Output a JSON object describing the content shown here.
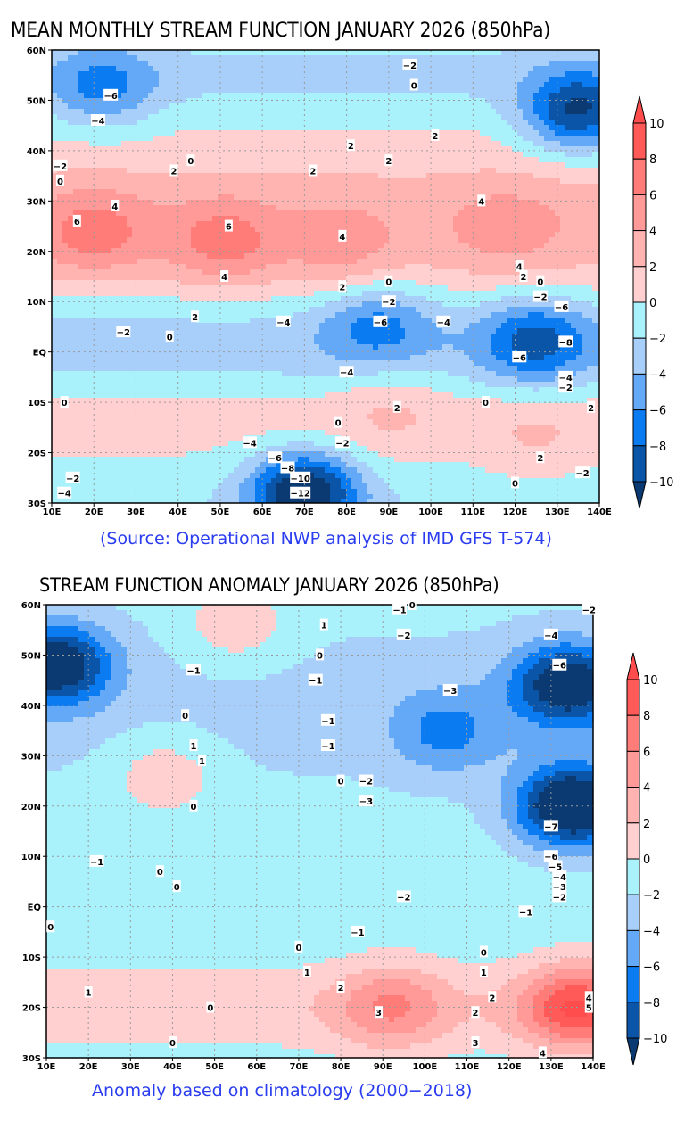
{
  "colors": {
    "bins": [
      "#0b3a73",
      "#0a55a8",
      "#0a7bf0",
      "#63a9f8",
      "#a8cff9",
      "#a9f1fb",
      "#ffd0cf",
      "#ffb4b2",
      "#ff9a98",
      "#ff7c79",
      "#ff5a57",
      "#ff4d4d"
    ],
    "caption": "#2a3cf0"
  },
  "chart_data": [
    {
      "type": "heatmap",
      "subtype": "filled-contour-map",
      "title": "MEAN MONTHLY STREAM FUNCTION JANUARY 2026 (850hPa)",
      "caption": "(Source: Operational NWP analysis of IMD GFS T-574)",
      "x_ticks": [
        "10E",
        "20E",
        "30E",
        "40E",
        "50E",
        "60E",
        "70E",
        "80E",
        "90E",
        "100E",
        "110E",
        "120E",
        "130E",
        "140E"
      ],
      "y_ticks": [
        "60N",
        "50N",
        "40N",
        "30N",
        "20N",
        "10N",
        "EQ",
        "10S",
        "20S",
        "30S"
      ],
      "xlim": [
        10,
        140
      ],
      "ylim": [
        -30,
        60
      ],
      "colorbar": {
        "levels": [
          "10",
          "8",
          "6",
          "4",
          "2",
          "0",
          "-2",
          "-4",
          "-6",
          "-8",
          "-10"
        ],
        "extend": "both"
      },
      "regions": [
        {
          "name": "north-africa-high",
          "lon": 20,
          "lat": 24,
          "value": 6
        },
        {
          "name": "arabia-high",
          "lon": 51,
          "lat": 22,
          "value": 6
        },
        {
          "name": "india-high",
          "lon": 79,
          "lat": 21,
          "value": 4
        },
        {
          "name": "china-high",
          "lon": 118,
          "lat": 25,
          "value": 4
        },
        {
          "name": "europe-low",
          "lon": 22,
          "lat": 53,
          "value": -6
        },
        {
          "name": "japan-low",
          "lon": 135,
          "lat": 48,
          "value": -10
        },
        {
          "name": "maritime-low",
          "lon": 125,
          "lat": 2,
          "value": -8
        },
        {
          "name": "bay-of-bengal-low",
          "lon": 87,
          "lat": 5,
          "value": -6
        },
        {
          "name": "south-indian-ocean-low",
          "lon": 70,
          "lat": -28,
          "value": -12
        },
        {
          "name": "south-indian-ocean-ridge",
          "lon": 90,
          "lat": -12,
          "value": 2
        },
        {
          "name": "australia-ridge",
          "lon": 125,
          "lat": -17,
          "value": 2
        },
        {
          "name": "southern-africa-ridge",
          "lon": 22,
          "lat": -15,
          "value": 0
        }
      ],
      "contour_labels": [
        {
          "text": "-2",
          "lon": 95,
          "lat": 57
        },
        {
          "text": "0",
          "lon": 96,
          "lat": 53
        },
        {
          "text": "-6",
          "lon": 24,
          "lat": 51
        },
        {
          "text": "-4",
          "lon": 21,
          "lat": 46
        },
        {
          "text": "-2",
          "lon": 12,
          "lat": 37
        },
        {
          "text": "0",
          "lon": 12,
          "lat": 34
        },
        {
          "text": "0",
          "lon": 43,
          "lat": 38
        },
        {
          "text": "2",
          "lon": 72,
          "lat": 36
        },
        {
          "text": "2",
          "lon": 39,
          "lat": 36
        },
        {
          "text": "2",
          "lon": 81,
          "lat": 41
        },
        {
          "text": "2",
          "lon": 90,
          "lat": 38
        },
        {
          "text": "2",
          "lon": 101,
          "lat": 43
        },
        {
          "text": "4",
          "lon": 25,
          "lat": 29
        },
        {
          "text": "6",
          "lon": 16,
          "lat": 26
        },
        {
          "text": "6",
          "lon": 52,
          "lat": 25
        },
        {
          "text": "4",
          "lon": 51,
          "lat": 15
        },
        {
          "text": "4",
          "lon": 79,
          "lat": 23
        },
        {
          "text": "4",
          "lon": 112,
          "lat": 30
        },
        {
          "text": "4",
          "lon": 121,
          "lat": 17
        },
        {
          "text": "2",
          "lon": 79,
          "lat": 13
        },
        {
          "text": "2",
          "lon": 122,
          "lat": 15
        },
        {
          "text": "0",
          "lon": 126,
          "lat": 14
        },
        {
          "text": "0",
          "lon": 90,
          "lat": 14
        },
        {
          "text": "2",
          "lon": 44,
          "lat": 7
        },
        {
          "text": "0",
          "lon": 38,
          "lat": 3
        },
        {
          "text": "-2",
          "lon": 27,
          "lat": 4
        },
        {
          "text": "-2",
          "lon": 90,
          "lat": 10
        },
        {
          "text": "-2",
          "lon": 126,
          "lat": 11
        },
        {
          "text": "-4",
          "lon": 65,
          "lat": 6
        },
        {
          "text": "-6",
          "lon": 88,
          "lat": 6
        },
        {
          "text": "-4",
          "lon": 103,
          "lat": 6
        },
        {
          "text": "-6",
          "lon": 131,
          "lat": 9
        },
        {
          "text": "-8",
          "lon": 132,
          "lat": 2
        },
        {
          "text": "-6",
          "lon": 121,
          "lat": -1
        },
        {
          "text": "-4",
          "lon": 132,
          "lat": -5
        },
        {
          "text": "-2",
          "lon": 132,
          "lat": -7
        },
        {
          "text": "-4",
          "lon": 80,
          "lat": -4
        },
        {
          "text": "0",
          "lon": 113,
          "lat": -10
        },
        {
          "text": "2",
          "lon": 92,
          "lat": -11
        },
        {
          "text": "2",
          "lon": 138,
          "lat": -11
        },
        {
          "text": "0",
          "lon": 13,
          "lat": -10
        },
        {
          "text": "0",
          "lon": 78,
          "lat": -14
        },
        {
          "text": "-2",
          "lon": 79,
          "lat": -18
        },
        {
          "text": "-4",
          "lon": 57,
          "lat": -18
        },
        {
          "text": "-6",
          "lon": 63,
          "lat": -21
        },
        {
          "text": "-8",
          "lon": 66,
          "lat": -23
        },
        {
          "text": "-10",
          "lon": 69,
          "lat": -25
        },
        {
          "text": "-12",
          "lon": 69,
          "lat": -28
        },
        {
          "text": "2",
          "lon": 126,
          "lat": -21
        },
        {
          "text": "-2",
          "lon": 136,
          "lat": -24
        },
        {
          "text": "0",
          "lon": 120,
          "lat": -26
        },
        {
          "text": "-2",
          "lon": 15,
          "lat": -25
        },
        {
          "text": "-4",
          "lon": 13,
          "lat": -28
        }
      ]
    },
    {
      "type": "heatmap",
      "subtype": "filled-contour-map",
      "title": "STREAM FUNCTION ANOMALY JANUARY 2026 (850hPa)",
      "caption": "Anomaly based on climatology (2000−2018)",
      "x_ticks": [
        "10E",
        "20E",
        "30E",
        "40E",
        "50E",
        "60E",
        "70E",
        "80E",
        "90E",
        "100E",
        "110E",
        "120E",
        "130E",
        "140E"
      ],
      "y_ticks": [
        "60N",
        "50N",
        "40N",
        "30N",
        "20N",
        "10N",
        "EQ",
        "10S",
        "20S",
        "30S"
      ],
      "xlim": [
        10,
        140
      ],
      "ylim": [
        -30,
        60
      ],
      "colorbar": {
        "levels": [
          "10",
          "8",
          "6",
          "4",
          "2",
          "0",
          "-2",
          "-4",
          "-6",
          "-8",
          "-10"
        ],
        "extend": "both"
      },
      "regions": [
        {
          "name": "europe-low",
          "lon": 12,
          "lat": 48,
          "value": -6
        },
        {
          "name": "russia-positive",
          "lon": 55,
          "lat": 56,
          "value": 1
        },
        {
          "name": "north-africa-positive",
          "lon": 38,
          "lat": 26,
          "value": 1
        },
        {
          "name": "west-pacific-low",
          "lon": 135,
          "lat": 20,
          "value": -7
        },
        {
          "name": "japan-low",
          "lon": 134,
          "lat": 44,
          "value": -6
        },
        {
          "name": "china-negative",
          "lon": 105,
          "lat": 35,
          "value": -3
        },
        {
          "name": "south-indian-ocean-positive",
          "lon": 92,
          "lat": -20,
          "value": 3
        },
        {
          "name": "australia-positive",
          "lon": 136,
          "lat": -20,
          "value": 5
        }
      ],
      "contour_labels": [
        {
          "text": "-1",
          "lon": 94,
          "lat": 59
        },
        {
          "text": "0",
          "lon": 97,
          "lat": 60
        },
        {
          "text": "-2",
          "lon": 139,
          "lat": 59
        },
        {
          "text": "1",
          "lon": 76,
          "lat": 56
        },
        {
          "text": "0",
          "lon": 75,
          "lat": 50
        },
        {
          "text": "-2",
          "lon": 95,
          "lat": 54
        },
        {
          "text": "-4",
          "lon": 130,
          "lat": 54
        },
        {
          "text": "-6",
          "lon": 132,
          "lat": 48
        },
        {
          "text": "-3",
          "lon": 106,
          "lat": 43
        },
        {
          "text": "-1",
          "lon": 45,
          "lat": 47
        },
        {
          "text": "-1",
          "lon": 74,
          "lat": 45
        },
        {
          "text": "-1",
          "lon": 77,
          "lat": 37
        },
        {
          "text": "-1",
          "lon": 77,
          "lat": 32
        },
        {
          "text": "0",
          "lon": 43,
          "lat": 38
        },
        {
          "text": "1",
          "lon": 45,
          "lat": 32
        },
        {
          "text": "1",
          "lon": 47,
          "lat": 29
        },
        {
          "text": "0",
          "lon": 80,
          "lat": 25
        },
        {
          "text": "0",
          "lon": 45,
          "lat": 20
        },
        {
          "text": "-2",
          "lon": 86,
          "lat": 25
        },
        {
          "text": "-3",
          "lon": 86,
          "lat": 21
        },
        {
          "text": "-7",
          "lon": 130,
          "lat": 16
        },
        {
          "text": "-6",
          "lon": 130,
          "lat": 10
        },
        {
          "text": "-5",
          "lon": 131,
          "lat": 8
        },
        {
          "text": "-4",
          "lon": 132,
          "lat": 6
        },
        {
          "text": "-3",
          "lon": 132,
          "lat": 4
        },
        {
          "text": "-2",
          "lon": 132,
          "lat": 2
        },
        {
          "text": "-2",
          "lon": 95,
          "lat": 2
        },
        {
          "text": "-1",
          "lon": 124,
          "lat": -1
        },
        {
          "text": "-1",
          "lon": 22,
          "lat": 9
        },
        {
          "text": "0",
          "lon": 37,
          "lat": 7
        },
        {
          "text": "0",
          "lon": 41,
          "lat": 4
        },
        {
          "text": "0",
          "lon": 11,
          "lat": -4
        },
        {
          "text": "-1",
          "lon": 84,
          "lat": -5
        },
        {
          "text": "0",
          "lon": 70,
          "lat": -8
        },
        {
          "text": "0",
          "lon": 114,
          "lat": -9
        },
        {
          "text": "1",
          "lon": 72,
          "lat": -13
        },
        {
          "text": "1",
          "lon": 114,
          "lat": -13
        },
        {
          "text": "2",
          "lon": 80,
          "lat": -16
        },
        {
          "text": "2",
          "lon": 116,
          "lat": -18
        },
        {
          "text": "2",
          "lon": 112,
          "lat": -21
        },
        {
          "text": "3",
          "lon": 89,
          "lat": -21
        },
        {
          "text": "3",
          "lon": 112,
          "lat": -27
        },
        {
          "text": "1",
          "lon": 20,
          "lat": -17
        },
        {
          "text": "0",
          "lon": 49,
          "lat": -20
        },
        {
          "text": "0",
          "lon": 40,
          "lat": -27
        },
        {
          "text": "4",
          "lon": 139,
          "lat": -18
        },
        {
          "text": "5",
          "lon": 139,
          "lat": -20
        },
        {
          "text": "4",
          "lon": 128,
          "lat": -29
        }
      ]
    }
  ]
}
